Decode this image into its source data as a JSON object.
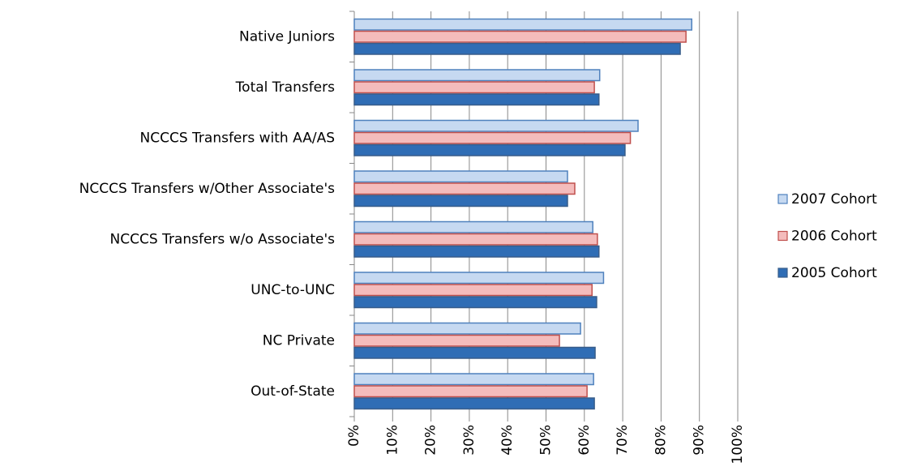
{
  "chart_data": {
    "type": "hbar",
    "categories": [
      "Native Juniors",
      "Total Transfers",
      "NCCCS Transfers with AA/AS",
      "NCCCS Transfers w/Other Associate's",
      "NCCCS Transfers w/o Associate's",
      "UNC-to-UNC",
      "NC Private",
      "Out-of-State"
    ],
    "series": [
      {
        "name": "2007 Cohort",
        "color": "#c6d9f1",
        "values": [
          88,
          64,
          74,
          55.6,
          62.2,
          65,
          59,
          62.4
        ]
      },
      {
        "name": "2006 Cohort",
        "color": "#f4bcbc",
        "values": [
          86.5,
          62.6,
          72,
          57.5,
          63.4,
          62,
          53.5,
          60.7
        ]
      },
      {
        "name": "2005 Cohort",
        "color": "#2f6db5",
        "values": [
          85,
          63.8,
          70.6,
          55.6,
          63.8,
          63.2,
          62.8,
          62.6
        ]
      }
    ],
    "xlim": [
      0,
      100
    ],
    "xticks": [
      {
        "value": 0,
        "label": "0%"
      },
      {
        "value": 10,
        "label": "10%"
      },
      {
        "value": 20,
        "label": "20%"
      },
      {
        "value": 30,
        "label": "30%"
      },
      {
        "value": 40,
        "label": "40%"
      },
      {
        "value": 50,
        "label": "50%"
      },
      {
        "value": 60,
        "label": "60%"
      },
      {
        "value": 70,
        "label": "70%"
      },
      {
        "value": 80,
        "label": "80%"
      },
      {
        "value": 90,
        "label": "90%"
      },
      {
        "value": 100,
        "label": "100%"
      }
    ],
    "grid": true,
    "legend": "right"
  }
}
